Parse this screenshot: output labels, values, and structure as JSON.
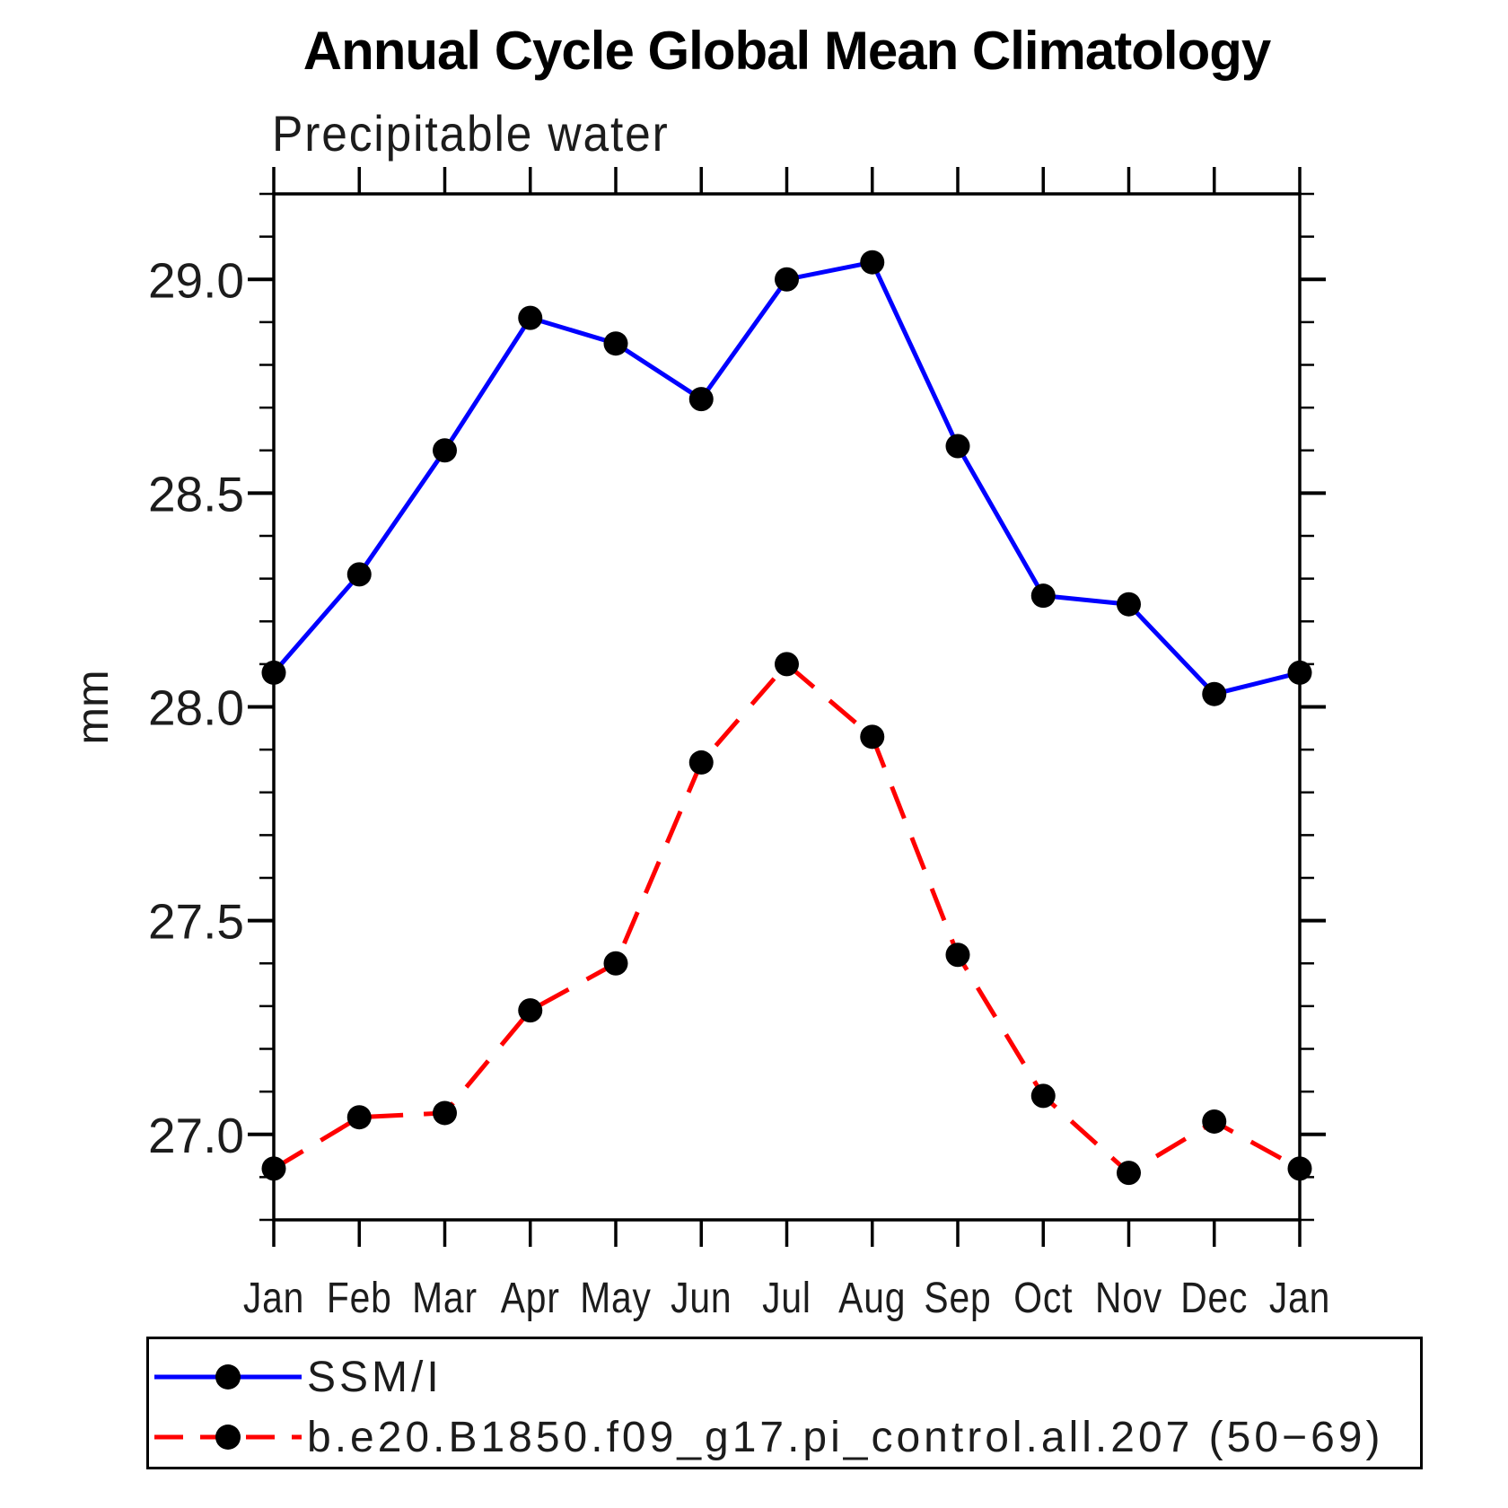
{
  "title": "Annual Cycle Global Mean Climatology",
  "subtitle": "Precipitable water",
  "ylabel": "mm",
  "colors": {
    "obs_line": "#0000ff",
    "model_line": "#ff0000",
    "marker": "#000000",
    "axis": "#000000"
  },
  "chart_data": {
    "type": "line",
    "title": "Annual Cycle Global Mean Climatology",
    "subtitle": "Precipitable water",
    "xlabel": "",
    "ylabel": "mm",
    "categories": [
      "Jan",
      "Feb",
      "Mar",
      "Apr",
      "May",
      "Jun",
      "Jul",
      "Aug",
      "Sep",
      "Oct",
      "Nov",
      "Dec",
      "Jan"
    ],
    "series": [
      {
        "name": "SSM/I",
        "color": "#0000ff",
        "line_style": "solid",
        "marker": "filled-circle",
        "values": [
          28.08,
          28.31,
          28.6,
          28.91,
          28.85,
          28.72,
          29.0,
          29.04,
          28.61,
          28.26,
          28.24,
          28.03,
          28.08
        ]
      },
      {
        "name": "b.e20.B1850.f09_g17.pi_control.all.207 (50−69)",
        "color": "#ff0000",
        "line_style": "dashed",
        "marker": "filled-circle",
        "values": [
          26.92,
          27.04,
          27.05,
          27.29,
          27.4,
          27.87,
          28.1,
          27.93,
          27.42,
          27.09,
          26.91,
          27.03,
          26.92
        ]
      }
    ],
    "ylim": [
      26.8,
      29.2
    ],
    "ytick_major": [
      27.0,
      27.5,
      28.0,
      28.5,
      29.0
    ],
    "ytick_major_labels": [
      "27.0",
      "27.5",
      "28.0",
      "28.5",
      "29.0"
    ],
    "ytick_minor_step": 0.1,
    "grid": false,
    "legend_position": "bottom-left-box"
  }
}
